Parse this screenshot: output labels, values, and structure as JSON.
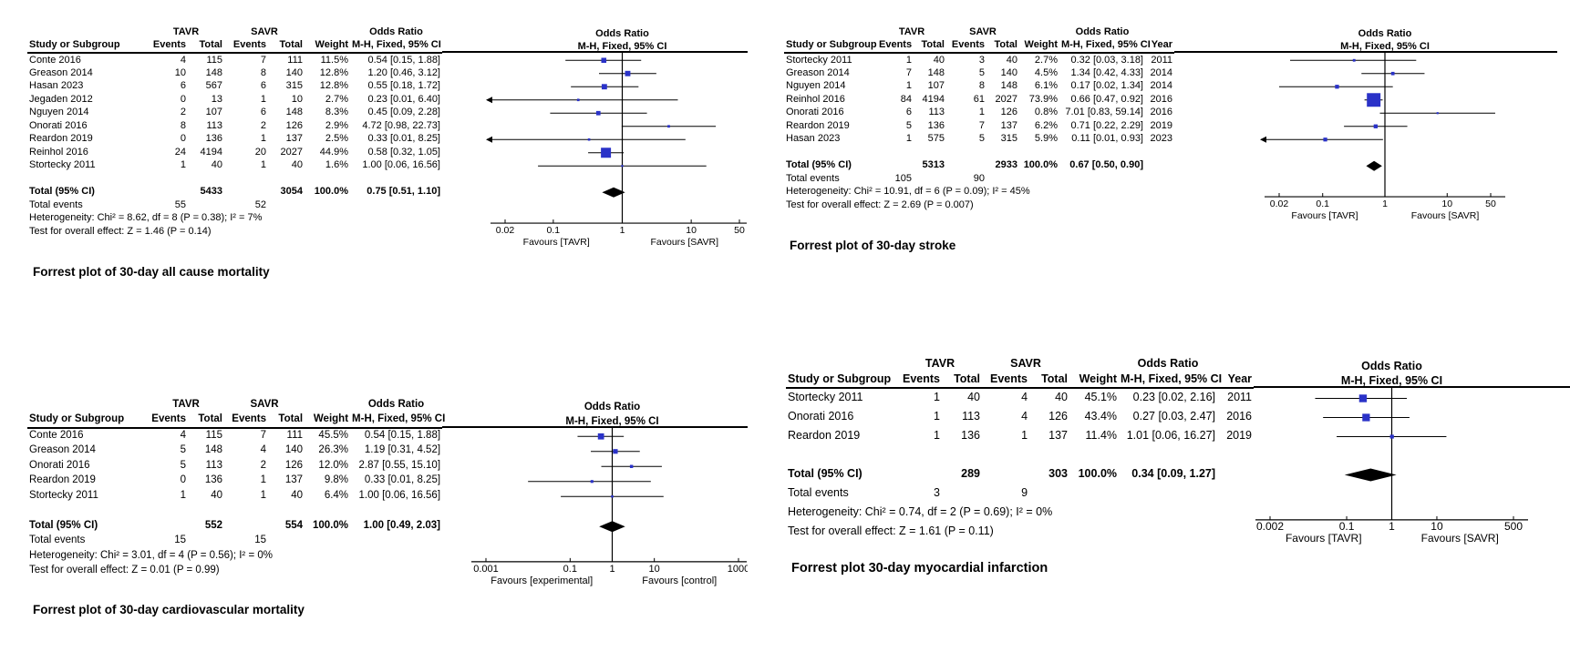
{
  "figure": {
    "background": "#ffffff"
  },
  "chart_data": [
    {
      "id": "all-cause-mortality",
      "type": "forest",
      "title": "Forrest plot of 30-day all cause mortality",
      "group1": "TAVR",
      "group2": "SAVR",
      "study_col_header": "Study or Subgroup",
      "events_header": "Events",
      "total_header": "Total",
      "weight_header": "Weight",
      "or_header": "Odds Ratio",
      "or_subheader": "M-H, Fixed, 95% CI",
      "has_year": false,
      "marker_color": "#2A32C8",
      "studies": [
        {
          "name": "Conte 2016",
          "events1": "4",
          "total1": "115",
          "events2": "7",
          "total2": "111",
          "weight": "11.5%",
          "weight_value": 11.5,
          "or_text": "0.54 [0.15, 1.88]",
          "or": 0.54,
          "ci_low": 0.15,
          "ci_high": 1.88
        },
        {
          "name": "Greason 2014",
          "events1": "10",
          "total1": "148",
          "events2": "8",
          "total2": "140",
          "weight": "12.8%",
          "weight_value": 12.8,
          "or_text": "1.20 [0.46, 3.12]",
          "or": 1.2,
          "ci_low": 0.46,
          "ci_high": 3.12
        },
        {
          "name": "Hasan 2023",
          "events1": "6",
          "total1": "567",
          "events2": "6",
          "total2": "315",
          "weight": "12.8%",
          "weight_value": 12.8,
          "or_text": "0.55 [0.18, 1.72]",
          "or": 0.55,
          "ci_low": 0.18,
          "ci_high": 1.72
        },
        {
          "name": "Jegaden 2012",
          "events1": "0",
          "total1": "13",
          "events2": "1",
          "total2": "10",
          "weight": "2.7%",
          "weight_value": 2.7,
          "or_text": "0.23 [0.01, 6.40]",
          "or": 0.23,
          "ci_low": 0.01,
          "ci_high": 6.4
        },
        {
          "name": "Nguyen 2014",
          "events1": "2",
          "total1": "107",
          "events2": "6",
          "total2": "148",
          "weight": "8.3%",
          "weight_value": 8.3,
          "or_text": "0.45 [0.09, 2.28]",
          "or": 0.45,
          "ci_low": 0.09,
          "ci_high": 2.28
        },
        {
          "name": "Onorati 2016",
          "events1": "8",
          "total1": "113",
          "events2": "2",
          "total2": "126",
          "weight": "2.9%",
          "weight_value": 2.9,
          "or_text": "4.72 [0.98, 22.73]",
          "or": 4.72,
          "ci_low": 0.98,
          "ci_high": 22.73
        },
        {
          "name": "Reardon 2019",
          "events1": "0",
          "total1": "136",
          "events2": "1",
          "total2": "137",
          "weight": "2.5%",
          "weight_value": 2.5,
          "or_text": "0.33 [0.01, 8.25]",
          "or": 0.33,
          "ci_low": 0.01,
          "ci_high": 8.25
        },
        {
          "name": "Reinhol 2016",
          "events1": "24",
          "total1": "4194",
          "events2": "20",
          "total2": "2027",
          "weight": "44.9%",
          "weight_value": 44.9,
          "or_text": "0.58 [0.32, 1.05]",
          "or": 0.58,
          "ci_low": 0.32,
          "ci_high": 1.05
        },
        {
          "name": "Stortecky 2011",
          "events1": "1",
          "total1": "40",
          "events2": "1",
          "total2": "40",
          "weight": "1.6%",
          "weight_value": 1.6,
          "or_text": "1.00 [0.06, 16.56]",
          "or": 1.0,
          "ci_low": 0.06,
          "ci_high": 16.56
        }
      ],
      "total_row": {
        "label": "Total (95% CI)",
        "total1": "5433",
        "total2": "3054",
        "weight": "100.0%",
        "or_text": "0.75 [0.51, 1.10]",
        "or": 0.75,
        "ci_low": 0.51,
        "ci_high": 1.1
      },
      "total_events": {
        "label": "Total events",
        "events1": "55",
        "events2": "52"
      },
      "heterogeneity": "Heterogeneity: Chi² = 8.62, df = 8 (P = 0.38); I² = 7%",
      "overall_effect": "Test for overall effect: Z = 1.46 (P = 0.14)",
      "axis": {
        "min": 0.02,
        "max": 50,
        "ticks": [
          "0.02",
          "0.1",
          "1",
          "10",
          "50"
        ],
        "favours_left": "Favours [TAVR]",
        "favours_right": "Favours [SAVR]",
        "scale": "log"
      }
    },
    {
      "id": "stroke",
      "type": "forest",
      "title": "Forrest plot of 30-day stroke",
      "group1": "TAVR",
      "group2": "SAVR",
      "study_col_header": "Study or Subgroup",
      "events_header": "Events",
      "total_header": "Total",
      "weight_header": "Weight",
      "or_header": "Odds Ratio",
      "or_subheader": "M-H, Fixed, 95% CI",
      "year_header": "Year",
      "has_year": true,
      "marker_color": "#2A32C8",
      "studies": [
        {
          "name": "Stortecky 2011",
          "events1": "1",
          "total1": "40",
          "events2": "3",
          "total2": "40",
          "weight": "2.7%",
          "weight_value": 2.7,
          "or_text": "0.32 [0.03, 3.18]",
          "or": 0.32,
          "ci_low": 0.03,
          "ci_high": 3.18,
          "year": "2011"
        },
        {
          "name": "Greason 2014",
          "events1": "7",
          "total1": "148",
          "events2": "5",
          "total2": "140",
          "weight": "4.5%",
          "weight_value": 4.5,
          "or_text": "1.34 [0.42, 4.33]",
          "or": 1.34,
          "ci_low": 0.42,
          "ci_high": 4.33,
          "year": "2014"
        },
        {
          "name": "Nguyen 2014",
          "events1": "1",
          "total1": "107",
          "events2": "8",
          "total2": "148",
          "weight": "6.1%",
          "weight_value": 6.1,
          "or_text": "0.17 [0.02, 1.34]",
          "or": 0.17,
          "ci_low": 0.02,
          "ci_high": 1.34,
          "year": "2014"
        },
        {
          "name": "Reinhol 2016",
          "events1": "84",
          "total1": "4194",
          "events2": "61",
          "total2": "2027",
          "weight": "73.9%",
          "weight_value": 73.9,
          "or_text": "0.66 [0.47, 0.92]",
          "or": 0.66,
          "ci_low": 0.47,
          "ci_high": 0.92,
          "year": "2016"
        },
        {
          "name": "Onorati 2016",
          "events1": "6",
          "total1": "113",
          "events2": "1",
          "total2": "126",
          "weight": "0.8%",
          "weight_value": 0.8,
          "or_text": "7.01 [0.83, 59.14]",
          "or": 7.01,
          "ci_low": 0.83,
          "ci_high": 59.14,
          "year": "2016"
        },
        {
          "name": "Reardon 2019",
          "events1": "5",
          "total1": "136",
          "events2": "7",
          "total2": "137",
          "weight": "6.2%",
          "weight_value": 6.2,
          "or_text": "0.71 [0.22, 2.29]",
          "or": 0.71,
          "ci_low": 0.22,
          "ci_high": 2.29,
          "year": "2019"
        },
        {
          "name": "Hasan 2023",
          "events1": "1",
          "total1": "575",
          "events2": "5",
          "total2": "315",
          "weight": "5.9%",
          "weight_value": 5.9,
          "or_text": "0.11 [0.01, 0.93]",
          "or": 0.11,
          "ci_low": 0.01,
          "ci_high": 0.93,
          "year": "2023"
        }
      ],
      "total_row": {
        "label": "Total (95% CI)",
        "total1": "5313",
        "total2": "2933",
        "weight": "100.0%",
        "or_text": "0.67 [0.50, 0.90]",
        "or": 0.67,
        "ci_low": 0.5,
        "ci_high": 0.9
      },
      "total_events": {
        "label": "Total events",
        "events1": "105",
        "events2": "90"
      },
      "heterogeneity": "Heterogeneity: Chi² = 10.91, df = 6 (P = 0.09); I² = 45%",
      "overall_effect": "Test for overall effect: Z = 2.69 (P = 0.007)",
      "axis": {
        "min": 0.02,
        "max": 50,
        "ticks": [
          "0.02",
          "0.1",
          "1",
          "10",
          "50"
        ],
        "favours_left": "Favours [TAVR]",
        "favours_right": "Favours [SAVR]",
        "scale": "log"
      }
    },
    {
      "id": "cardiovascular-mortality",
      "type": "forest",
      "title": "Forrest plot of 30-day cardiovascular mortality",
      "group1": "TAVR",
      "group2": "SAVR",
      "study_col_header": "Study or Subgroup",
      "events_header": "Events",
      "total_header": "Total",
      "weight_header": "Weight",
      "or_header": "Odds Ratio",
      "or_subheader": "M-H, Fixed, 95% CI",
      "has_year": false,
      "marker_color": "#2A32C8",
      "studies": [
        {
          "name": "Conte 2016",
          "events1": "4",
          "total1": "115",
          "events2": "7",
          "total2": "111",
          "weight": "45.5%",
          "weight_value": 45.5,
          "or_text": "0.54 [0.15, 1.88]",
          "or": 0.54,
          "ci_low": 0.15,
          "ci_high": 1.88
        },
        {
          "name": "Greason 2014",
          "events1": "5",
          "total1": "148",
          "events2": "4",
          "total2": "140",
          "weight": "26.3%",
          "weight_value": 26.3,
          "or_text": "1.19 [0.31, 4.52]",
          "or": 1.19,
          "ci_low": 0.31,
          "ci_high": 4.52
        },
        {
          "name": "Onorati 2016",
          "events1": "5",
          "total1": "113",
          "events2": "2",
          "total2": "126",
          "weight": "12.0%",
          "weight_value": 12.0,
          "or_text": "2.87 [0.55, 15.10]",
          "or": 2.87,
          "ci_low": 0.55,
          "ci_high": 15.1
        },
        {
          "name": "Reardon 2019",
          "events1": "0",
          "total1": "136",
          "events2": "1",
          "total2": "137",
          "weight": "9.8%",
          "weight_value": 9.8,
          "or_text": "0.33 [0.01, 8.25]",
          "or": 0.33,
          "ci_low": 0.01,
          "ci_high": 8.25
        },
        {
          "name": "Stortecky 2011",
          "events1": "1",
          "total1": "40",
          "events2": "1",
          "total2": "40",
          "weight": "6.4%",
          "weight_value": 6.4,
          "or_text": "1.00 [0.06, 16.56]",
          "or": 1.0,
          "ci_low": 0.06,
          "ci_high": 16.56
        }
      ],
      "total_row": {
        "label": "Total (95% CI)",
        "total1": "552",
        "total2": "554",
        "weight": "100.0%",
        "or_text": "1.00 [0.49, 2.03]",
        "or": 1.0,
        "ci_low": 0.49,
        "ci_high": 2.03
      },
      "total_events": {
        "label": "Total events",
        "events1": "15",
        "events2": "15"
      },
      "heterogeneity": "Heterogeneity: Chi² = 3.01, df = 4 (P = 0.56); I² = 0%",
      "overall_effect": "Test for overall effect: Z = 0.01 (P = 0.99)",
      "axis": {
        "min": 0.001,
        "max": 1000,
        "ticks": [
          "0.001",
          "0.1",
          "1",
          "10",
          "1000"
        ],
        "favours_left": "Favours [experimental]",
        "favours_right": "Favours [control]",
        "scale": "log"
      }
    },
    {
      "id": "myocardial-infarction",
      "type": "forest",
      "title": "Forrest plot 30-day myocardial infarction",
      "group1": "TAVR",
      "group2": "SAVR",
      "study_col_header": "Study or Subgroup",
      "events_header": "Events",
      "total_header": "Total",
      "weight_header": "Weight",
      "or_header": "Odds Ratio",
      "or_subheader": "M-H, Fixed, 95% CI",
      "year_header": "Year",
      "has_year": true,
      "marker_color": "#2A32C8",
      "studies": [
        {
          "name": "Stortecky 2011",
          "events1": "1",
          "total1": "40",
          "events2": "4",
          "total2": "40",
          "weight": "45.1%",
          "weight_value": 45.1,
          "or_text": "0.23 [0.02, 2.16]",
          "or": 0.23,
          "ci_low": 0.02,
          "ci_high": 2.16,
          "year": "2011"
        },
        {
          "name": "Onorati 2016",
          "events1": "1",
          "total1": "113",
          "events2": "4",
          "total2": "126",
          "weight": "43.4%",
          "weight_value": 43.4,
          "or_text": "0.27 [0.03, 2.47]",
          "or": 0.27,
          "ci_low": 0.03,
          "ci_high": 2.47,
          "year": "2016"
        },
        {
          "name": "Reardon 2019",
          "events1": "1",
          "total1": "136",
          "events2": "1",
          "total2": "137",
          "weight": "11.4%",
          "weight_value": 11.4,
          "or_text": "1.01 [0.06, 16.27]",
          "or": 1.01,
          "ci_low": 0.06,
          "ci_high": 16.27,
          "year": "2019"
        }
      ],
      "total_row": {
        "label": "Total (95% CI)",
        "total1": "289",
        "total2": "303",
        "weight": "100.0%",
        "or_text": "0.34 [0.09, 1.27]",
        "or": 0.34,
        "ci_low": 0.09,
        "ci_high": 1.27
      },
      "total_events": {
        "label": "Total events",
        "events1": "3",
        "events2": "9"
      },
      "heterogeneity": "Heterogeneity: Chi² = 0.74, df = 2 (P = 0.69); I² = 0%",
      "overall_effect": "Test for overall effect: Z = 1.61 (P = 0.11)",
      "axis": {
        "min": 0.002,
        "max": 500,
        "ticks": [
          "0.002",
          "0.1",
          "1",
          "10",
          "500"
        ],
        "favours_left": "Favours [TAVR]",
        "favours_right": "Favours [SAVR]",
        "scale": "log"
      }
    }
  ]
}
